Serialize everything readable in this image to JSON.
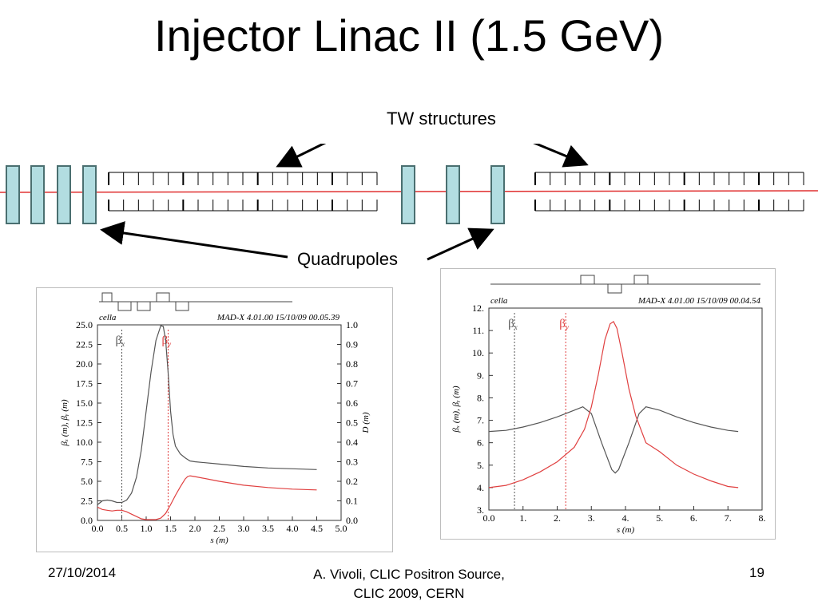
{
  "title": "Injector Linac II (1.5 GeV)",
  "labels": {
    "tw": "TW structures",
    "quad": "Quadrupoles"
  },
  "colors": {
    "quad_fill": "#b2dde1",
    "quad_stroke": "#4a6f70",
    "beam": "#e03030",
    "curve_x": "#555555",
    "curve_y": "#e04040"
  },
  "footer": {
    "date": "27/10/2014",
    "line1": "A. Vivoli,  CLIC Positron Source,",
    "line2": "CLIC 2009, CERN",
    "page": "19"
  },
  "chart_data": [
    {
      "type": "line",
      "header_left": "cella",
      "header_right": "MAD-X 4.01.00  15/10/09 00.05.39",
      "ylabel": "βₓ (m),  βᵧ (m)",
      "y2label": "D (m)",
      "xlabel": "s (m)",
      "xlim": [
        0,
        5
      ],
      "ylim": [
        0,
        25
      ],
      "y2lim": [
        0,
        1
      ],
      "xticks": [
        "0.0",
        "0.5",
        "1.0",
        "1.5",
        "2.0",
        "2.5",
        "3.0",
        "3.5",
        "4.0",
        "4.5",
        "5.0"
      ],
      "yticks": [
        "0.0",
        "2.5",
        "5.0",
        "7.5",
        "10.0",
        "12.5",
        "15.0",
        "17.5",
        "20.0",
        "22.5",
        "25.0"
      ],
      "y2ticks": [
        "0.0",
        "0.1",
        "0.2",
        "0.3",
        "0.4",
        "0.5",
        "0.6",
        "0.7",
        "0.8",
        "0.9",
        "1.0"
      ],
      "markers": [
        {
          "label": "βx",
          "s": 0.5
        },
        {
          "label": "βy",
          "s": 1.45
        }
      ],
      "series": [
        {
          "key": "bx",
          "x": [
            0,
            0.1,
            0.2,
            0.3,
            0.4,
            0.5,
            0.6,
            0.7,
            0.8,
            0.9,
            1.0,
            1.1,
            1.2,
            1.3,
            1.35,
            1.4,
            1.45,
            1.5,
            1.55,
            1.6,
            1.7,
            1.8,
            1.85,
            1.9,
            2.0,
            2.5,
            3.0,
            3.5,
            4.0,
            4.5
          ],
          "y": [
            2.0,
            2.5,
            2.6,
            2.5,
            2.3,
            2.3,
            2.6,
            3.5,
            5.5,
            9.0,
            14.0,
            19.0,
            23.0,
            24.9,
            24.8,
            23.0,
            19.0,
            14.0,
            11.0,
            9.5,
            8.5,
            8.0,
            7.8,
            7.6,
            7.5,
            7.2,
            6.9,
            6.7,
            6.6,
            6.5
          ]
        },
        {
          "key": "by",
          "x": [
            0,
            0.1,
            0.2,
            0.3,
            0.4,
            0.5,
            0.6,
            0.7,
            0.8,
            0.9,
            1.0,
            1.1,
            1.2,
            1.3,
            1.4,
            1.5,
            1.6,
            1.7,
            1.8,
            1.85,
            1.9,
            2.0,
            2.5,
            3.0,
            3.5,
            4.0,
            4.5
          ],
          "y": [
            1.7,
            1.4,
            1.3,
            1.2,
            1.3,
            1.3,
            1.1,
            0.8,
            0.5,
            0.2,
            0.1,
            0.1,
            0.1,
            0.3,
            0.9,
            2.0,
            3.2,
            4.3,
            5.3,
            5.6,
            5.7,
            5.6,
            5.0,
            4.5,
            4.2,
            4.0,
            3.9
          ]
        }
      ]
    },
    {
      "type": "line",
      "header_left": "cella",
      "header_right": "MAD-X 4.01.00  15/10/09 00.04.54",
      "ylabel": "βₓ (m),  βᵧ (m)",
      "xlabel": "s (m)",
      "xlim": [
        0,
        8
      ],
      "ylim": [
        3,
        12
      ],
      "xticks": [
        "0.0",
        "1.",
        "2.",
        "3.",
        "4.",
        "5.",
        "6.",
        "7.",
        "8."
      ],
      "yticks": [
        "3.",
        "4.",
        "5.",
        "6.",
        "7.",
        "8.",
        "9.",
        "10.",
        "11.",
        "12."
      ],
      "markers": [
        {
          "label": "βx",
          "s": 0.75
        },
        {
          "label": "βy",
          "s": 2.25
        }
      ],
      "series": [
        {
          "key": "bx",
          "x": [
            0,
            0.5,
            1.0,
            1.5,
            2.0,
            2.5,
            2.75,
            3.0,
            3.3,
            3.6,
            3.7,
            3.8,
            4.1,
            4.4,
            4.6,
            5.0,
            5.5,
            6.0,
            6.5,
            7.0,
            7.3
          ],
          "y": [
            6.5,
            6.55,
            6.7,
            6.9,
            7.15,
            7.45,
            7.6,
            7.3,
            6.0,
            4.8,
            4.65,
            4.8,
            6.0,
            7.3,
            7.6,
            7.45,
            7.15,
            6.9,
            6.7,
            6.55,
            6.5
          ]
        },
        {
          "key": "by",
          "x": [
            0,
            0.5,
            1.0,
            1.5,
            2.0,
            2.5,
            2.8,
            3.0,
            3.2,
            3.4,
            3.55,
            3.65,
            3.75,
            3.9,
            4.1,
            4.3,
            4.6,
            5.0,
            5.5,
            6.0,
            6.5,
            7.0,
            7.3
          ],
          "y": [
            4.0,
            4.1,
            4.35,
            4.7,
            5.15,
            5.8,
            6.6,
            7.6,
            9.0,
            10.6,
            11.3,
            11.4,
            11.1,
            10.0,
            8.4,
            7.2,
            6.0,
            5.6,
            5.0,
            4.6,
            4.3,
            4.05,
            4.0
          ]
        }
      ]
    }
  ]
}
